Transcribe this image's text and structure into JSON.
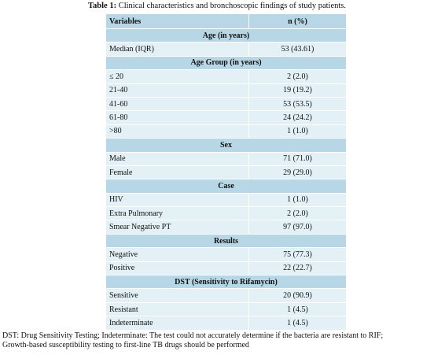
{
  "caption": {
    "label": "Table 1:",
    "text": "Clinical characteristics and bronchoscopic findings of study patients."
  },
  "table": {
    "header": [
      "Variables",
      "n (%)"
    ],
    "sections": [
      {
        "title": "Age (in years)",
        "rows": [
          [
            "Median (IQR)",
            "53 (43.61)"
          ]
        ]
      },
      {
        "title": "Age Group (in years)",
        "rows": [
          [
            "≤ 20",
            "2 (2.0)"
          ],
          [
            "21-40",
            "19 (19.2)"
          ],
          [
            "41-60",
            "53 (53.5)"
          ],
          [
            "61-80",
            "24 (24.2)"
          ],
          [
            ">80",
            "1 (1.0)"
          ]
        ]
      },
      {
        "title": "Sex",
        "rows": [
          [
            "Male",
            "71 (71.0)"
          ],
          [
            "Female",
            "29 (29.0)"
          ]
        ]
      },
      {
        "title": "Case",
        "rows": [
          [
            "HIV",
            "1 (1.0)"
          ],
          [
            "Extra Pulmonary",
            "2 (2.0)"
          ],
          [
            "Smear Negative PT",
            "97 (97.0)"
          ]
        ]
      },
      {
        "title": "Results",
        "rows": [
          [
            "Negative",
            "75 (77.3)"
          ],
          [
            "Positive",
            "22 (22.7)"
          ]
        ]
      },
      {
        "title": "DST (Sensitivity to Rifamycin)",
        "rows": [
          [
            "Sensitive",
            "20 (90.9)"
          ],
          [
            "Resistant",
            "1 (4.5)"
          ],
          [
            "Indeterminate",
            "1 (4.5)"
          ]
        ]
      }
    ]
  },
  "footnote": [
    "DST: Drug Sensitivity Testing; Indeterminate: The test could not accurately determine if the bacteria are resistant to RIF;",
    "Growth-based susceptibility testing to first-line TB drugs should be performed"
  ]
}
